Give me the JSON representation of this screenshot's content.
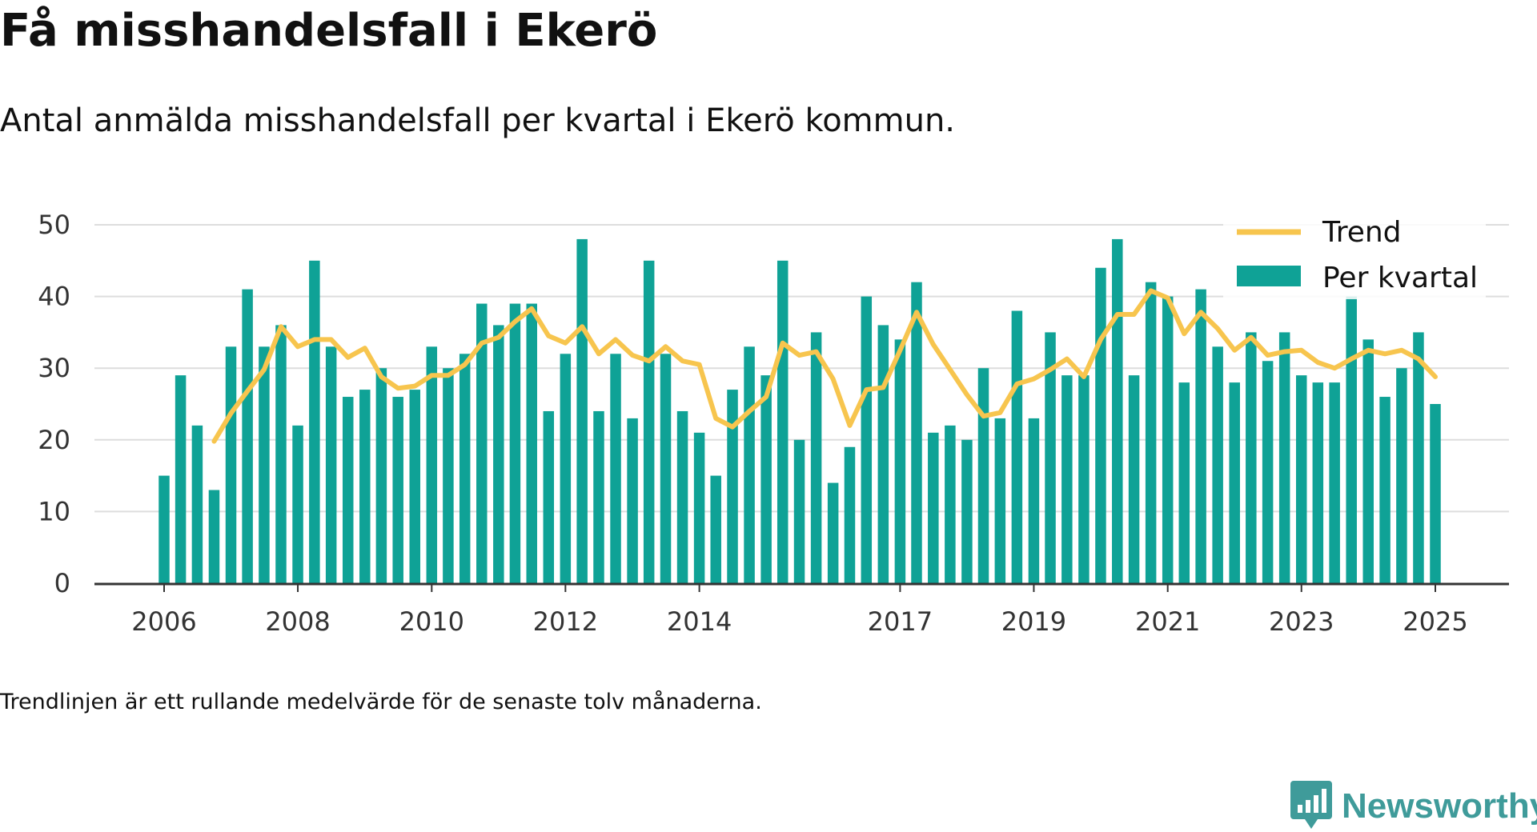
{
  "title": "Få misshandelsfall i Ekerö",
  "subtitle": "Antal anmälda misshandelsfall per kvartal i Ekerö kommun.",
  "footnote": "Trendlinjen är ett rullande medelvärde för de senaste tolv månaderna.",
  "brand": "Newsworthy",
  "colors": {
    "bar": "#0fa296",
    "trend": "#f7c54e",
    "grid": "#dddddd",
    "axis": "#333333",
    "brand": "#3f9b9a"
  },
  "chart_data": {
    "type": "bar",
    "x_unit": "quarter start date",
    "ylim": [
      0,
      50
    ],
    "y_ticks": [
      0,
      10,
      20,
      30,
      40,
      50
    ],
    "x_ticks": [
      "2006",
      "2008",
      "2010",
      "2012",
      "2014",
      "2017",
      "2019",
      "2021",
      "2023",
      "2025"
    ],
    "grid": "horizontal",
    "legend_position": "top-right",
    "legend": [
      "Trend",
      "Per kvartal"
    ],
    "x": [
      "2006-01-01",
      "2006-04-01",
      "2006-07-01",
      "2006-10-01",
      "2007-01-01",
      "2007-04-01",
      "2007-07-01",
      "2007-10-01",
      "2008-01-01",
      "2008-04-01",
      "2008-07-01",
      "2008-10-01",
      "2009-01-01",
      "2009-04-01",
      "2009-07-01",
      "2009-10-01",
      "2010-01-01",
      "2010-04-01",
      "2010-07-01",
      "2010-10-01",
      "2011-01-01",
      "2011-04-01",
      "2011-07-01",
      "2011-10-01",
      "2012-01-01",
      "2012-04-01",
      "2012-07-01",
      "2012-10-01",
      "2013-01-01",
      "2013-04-01",
      "2013-07-01",
      "2013-10-01",
      "2014-01-01",
      "2014-04-01",
      "2014-07-01",
      "2014-10-01",
      "2015-01-01",
      "2015-04-01",
      "2015-07-01",
      "2015-10-01",
      "2016-01-01",
      "2016-04-01",
      "2016-07-01",
      "2016-10-01",
      "2017-01-01",
      "2017-04-01",
      "2017-07-01",
      "2017-10-01",
      "2018-01-01",
      "2018-04-01",
      "2018-07-01",
      "2018-10-01",
      "2019-01-01",
      "2019-04-01",
      "2019-07-01",
      "2019-10-01",
      "2020-01-01",
      "2020-04-01",
      "2020-07-01",
      "2020-10-01",
      "2021-01-01",
      "2021-04-01",
      "2021-07-01",
      "2021-10-01",
      "2022-01-01",
      "2022-04-01",
      "2022-07-01",
      "2022-10-01",
      "2023-01-01",
      "2023-04-01",
      "2023-07-01",
      "2023-10-01",
      "2024-01-01",
      "2024-04-01",
      "2024-07-01",
      "2024-10-01",
      "2025-01-01"
    ],
    "series": [
      {
        "name": "Per kvartal",
        "type": "bar",
        "values": [
          15,
          29,
          22,
          13,
          33,
          41,
          33,
          36,
          22,
          45,
          33,
          26,
          27,
          30,
          26,
          27,
          33,
          30,
          32,
          39,
          36,
          39,
          39,
          24,
          32,
          48,
          24,
          32,
          23,
          45,
          32,
          24,
          21,
          15,
          27,
          33,
          29,
          45,
          20,
          35,
          14,
          19,
          40,
          36,
          34,
          42,
          21,
          22,
          20,
          30,
          23,
          38,
          23,
          35,
          29,
          29,
          44,
          48,
          29,
          42,
          40,
          28,
          41,
          33,
          28,
          35,
          31,
          35,
          29,
          28,
          28,
          40,
          34,
          26,
          30,
          35,
          25
        ]
      },
      {
        "name": "Trend",
        "type": "line",
        "values": [
          null,
          null,
          null,
          19.8,
          23.7,
          26.8,
          29.8,
          35.8,
          33.0,
          34.0,
          34.0,
          31.5,
          32.8,
          28.8,
          27.2,
          27.5,
          29.0,
          29.0,
          30.5,
          33.5,
          34.3,
          36.5,
          38.3,
          34.5,
          33.5,
          35.8,
          32.0,
          34.0,
          31.8,
          31.0,
          33.0,
          31.0,
          30.5,
          23.0,
          21.8,
          24.0,
          26.0,
          33.5,
          31.8,
          32.3,
          28.5,
          22.0,
          27.0,
          27.3,
          32.5,
          37.8,
          33.3,
          29.8,
          26.3,
          23.3,
          23.8,
          27.8,
          28.5,
          29.8,
          31.3,
          28.8,
          34.0,
          37.5,
          37.5,
          40.8,
          39.8,
          34.8,
          37.8,
          35.5,
          32.5,
          34.3,
          31.8,
          32.3,
          32.5,
          30.8,
          30.0,
          31.3,
          32.5,
          32.0,
          32.5,
          31.3,
          28.8
        ]
      }
    ]
  }
}
